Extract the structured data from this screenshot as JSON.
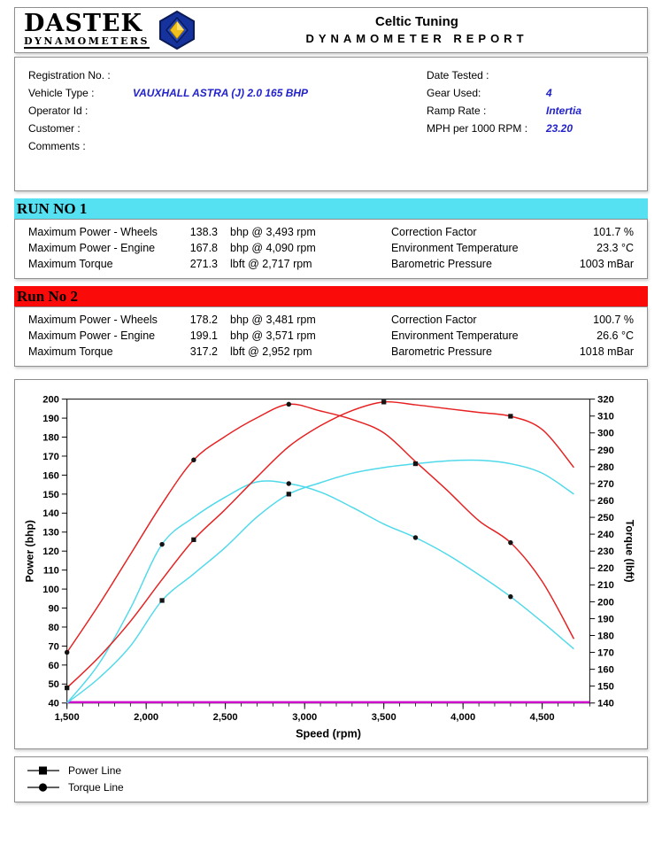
{
  "header": {
    "logo_text": "DASTEK",
    "logo_subtext": "DYNAMOMETERS",
    "company": "Celtic Tuning",
    "report_title": "DYNAMOMETER REPORT"
  },
  "info": {
    "left": [
      {
        "label": "Registration No. :",
        "value": ""
      },
      {
        "label": "Vehicle Type :",
        "value": "VAUXHALL ASTRA (J) 2.0 165 BHP"
      },
      {
        "label": "Operator Id :",
        "value": ""
      },
      {
        "label": "Customer :",
        "value": ""
      },
      {
        "label": "Comments :",
        "value": ""
      }
    ],
    "right": [
      {
        "label": "Date Tested :",
        "value": ""
      },
      {
        "label": "Gear Used:",
        "value": "4"
      },
      {
        "label": "Ramp Rate :",
        "value": "Intertia"
      },
      {
        "label": "MPH per 1000 RPM :",
        "value": "23.20"
      }
    ]
  },
  "runs": [
    {
      "banner": "RUN NO 1",
      "banner_color": "#55e1f2",
      "stats_left": [
        {
          "label": "Maximum Power - Wheels",
          "value": "138.3",
          "unit": "bhp @ 3,493 rpm"
        },
        {
          "label": "Maximum Power - Engine",
          "value": "167.8",
          "unit": "bhp @ 4,090 rpm"
        },
        {
          "label": "Maximum Torque",
          "value": "271.3",
          "unit": "lbft @ 2,717 rpm"
        }
      ],
      "stats_right": [
        {
          "label": "Correction Factor",
          "value": "101.7 %"
        },
        {
          "label": "Environment Temperature",
          "value": "23.3 °C"
        },
        {
          "label": "Barometric Pressure",
          "value": "1003 mBar"
        }
      ]
    },
    {
      "banner": "Run No 2",
      "banner_color": "#fb0a0a",
      "stats_left": [
        {
          "label": "Maximum Power - Wheels",
          "value": "178.2",
          "unit": "bhp @ 3,481 rpm"
        },
        {
          "label": "Maximum Power - Engine",
          "value": "199.1",
          "unit": "bhp @ 3,571 rpm"
        },
        {
          "label": "Maximum Torque",
          "value": "317.2",
          "unit": "lbft @ 2,952 rpm"
        }
      ],
      "stats_right": [
        {
          "label": "Correction Factor",
          "value": "100.7 %"
        },
        {
          "label": "Environment Temperature",
          "value": "26.6 °C"
        },
        {
          "label": "Barometric Pressure",
          "value": "1018 mBar"
        }
      ]
    }
  ],
  "chart_data": {
    "type": "line",
    "xlabel": "Speed (rpm)",
    "ylabel_left": "Power (bhp)",
    "ylabel_right": "Torque (lbft)",
    "x_range": [
      1500,
      4800
    ],
    "y_left_range": [
      40,
      200
    ],
    "y_left_tick_step": 10,
    "y_right_range": [
      140,
      320
    ],
    "y_right_tick_step": 10,
    "x_tick_values": [
      1500,
      2000,
      2500,
      3000,
      3500,
      4000,
      4500
    ],
    "x_tick_labels": [
      "1,500",
      "2,000",
      "2,500",
      "3,000",
      "3,500",
      "4,000",
      "4,500"
    ],
    "grid": false,
    "x": [
      1500,
      1700,
      1900,
      2100,
      2300,
      2500,
      2700,
      2900,
      3100,
      3300,
      3500,
      3700,
      3900,
      4100,
      4300,
      4500,
      4700
    ],
    "series": [
      {
        "name": "Run 1 Power",
        "axis": "left",
        "color": "#4fd9ea",
        "marker": "square",
        "marker_indices": [
          3,
          7,
          11
        ],
        "values": [
          40,
          53,
          70,
          94,
          108,
          122,
          138,
          150,
          156,
          161,
          164,
          166,
          167.5,
          167.8,
          166,
          161,
          150
        ]
      },
      {
        "name": "Run 1 Torque",
        "axis": "right",
        "color": "#4fd9ea",
        "marker": "circle",
        "marker_indices": [
          3,
          7,
          11,
          14
        ],
        "values": [
          140,
          163,
          196,
          234,
          250,
          262,
          271,
          270,
          265,
          256,
          246,
          238,
          228,
          216,
          203,
          188,
          172
        ]
      },
      {
        "name": "Run 2 Power",
        "axis": "left",
        "color": "#e62020",
        "marker": "square",
        "marker_indices": [
          0,
          4,
          10,
          14
        ],
        "values": [
          48,
          64,
          83,
          105,
          126,
          142,
          159,
          175,
          186,
          194,
          198.5,
          197,
          195,
          193,
          191,
          184,
          164
        ]
      },
      {
        "name": "Run 2 Torque",
        "axis": "right",
        "color": "#e62020",
        "marker": "circle",
        "marker_indices": [
          0,
          4,
          7,
          14
        ],
        "values": [
          170,
          198,
          228,
          258,
          284,
          298,
          309,
          317,
          313,
          308,
          300,
          283,
          266,
          248,
          235,
          212,
          178
        ]
      }
    ],
    "baseline_color": "#cc00cc"
  },
  "legend": [
    {
      "marker": "square",
      "label": "Power Line"
    },
    {
      "marker": "circle",
      "label": "Torque Line"
    }
  ]
}
